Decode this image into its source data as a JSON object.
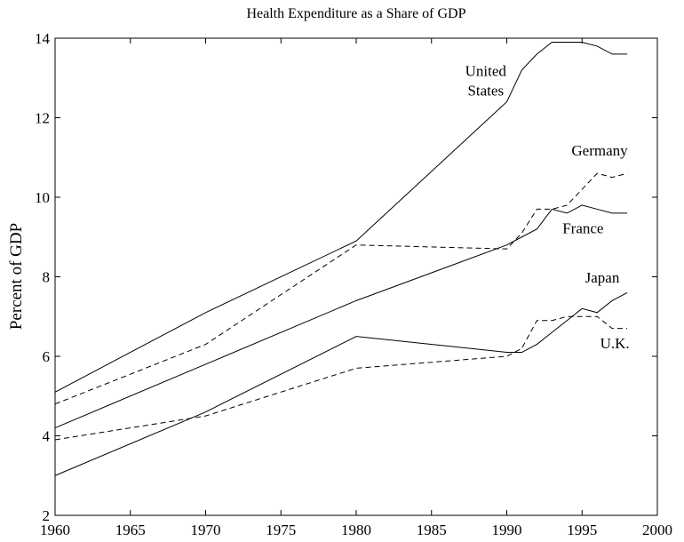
{
  "chart_data": {
    "type": "line",
    "title": "Health Expenditure as a Share of GDP",
    "y_label": "Percent of GDP",
    "x": [
      1960,
      1970,
      1980,
      1990,
      1991,
      1992,
      1993,
      1994,
      1995,
      1996,
      1997,
      1998
    ],
    "series": [
      {
        "name": "United States",
        "color": "#000000",
        "linestyle": "solid",
        "values": [
          5.1,
          7.1,
          8.9,
          12.4,
          13.2,
          13.6,
          13.9,
          13.9,
          13.9,
          13.8,
          13.6,
          13.6
        ]
      },
      {
        "name": "Germany",
        "color": "#000000",
        "linestyle": "dashed",
        "values": [
          4.8,
          6.3,
          8.8,
          8.7,
          9.1,
          9.7,
          9.7,
          9.8,
          10.2,
          10.6,
          10.5,
          10.6
        ]
      },
      {
        "name": "France",
        "color": "#000000",
        "linestyle": "solid",
        "values": [
          4.2,
          5.8,
          7.4,
          8.8,
          9.0,
          9.2,
          9.7,
          9.6,
          9.8,
          9.7,
          9.6,
          9.6
        ]
      },
      {
        "name": "Japan",
        "color": "#000000",
        "linestyle": "solid",
        "values": [
          3.0,
          4.6,
          6.5,
          6.1,
          6.1,
          6.3,
          6.6,
          6.9,
          7.2,
          7.1,
          7.4,
          7.6
        ]
      },
      {
        "name": "U.K.",
        "color": "#000000",
        "linestyle": "dashed",
        "values": [
          3.9,
          4.5,
          5.7,
          6.0,
          6.2,
          6.9,
          6.9,
          7.0,
          7.0,
          7.0,
          6.7,
          6.7
        ]
      }
    ],
    "xlim": [
      1960,
      2000
    ],
    "xticks": [
      1960,
      1965,
      1970,
      1975,
      1980,
      1985,
      1990,
      1995,
      2000
    ],
    "ylim": [
      2,
      14
    ],
    "yticks": [
      2,
      4,
      6,
      8,
      10,
      12,
      14
    ],
    "grid": false
  }
}
